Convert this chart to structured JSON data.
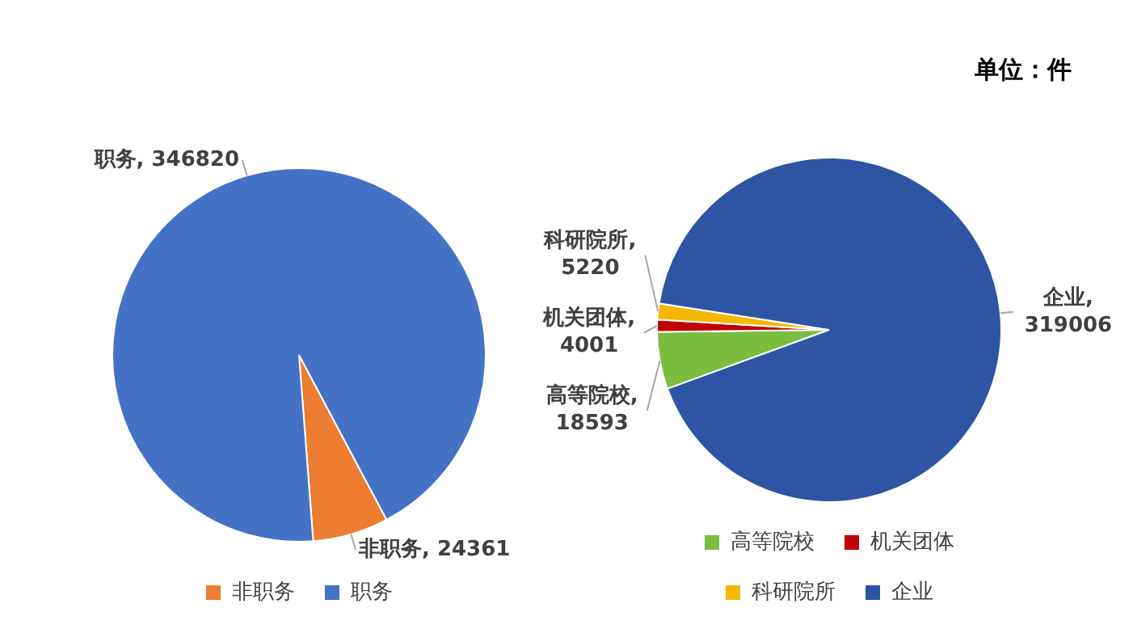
{
  "chart_data": [
    {
      "type": "pie",
      "categories": [
        "非职务",
        "职务"
      ],
      "values": [
        24361,
        346820
      ],
      "colors": [
        "#ed7d31",
        "#4472c4"
      ],
      "value_labels": [
        "非职务, 24361",
        "职务, 346820"
      ],
      "legend": "bottom"
    },
    {
      "type": "pie",
      "categories": [
        "高等院校",
        "机关团体",
        "科研院所",
        "企业"
      ],
      "values": [
        18593,
        4001,
        5220,
        319006
      ],
      "colors": [
        "#7bbd3f",
        "#c00000",
        "#f5b800",
        "#2e55a3"
      ],
      "value_labels": [
        "高等院校,\n18593",
        "机关团体,\n4001",
        "科研院所,\n5220",
        "企业,\n319006"
      ],
      "legend": "bottom",
      "annotations": [
        "单位：件"
      ]
    }
  ]
}
